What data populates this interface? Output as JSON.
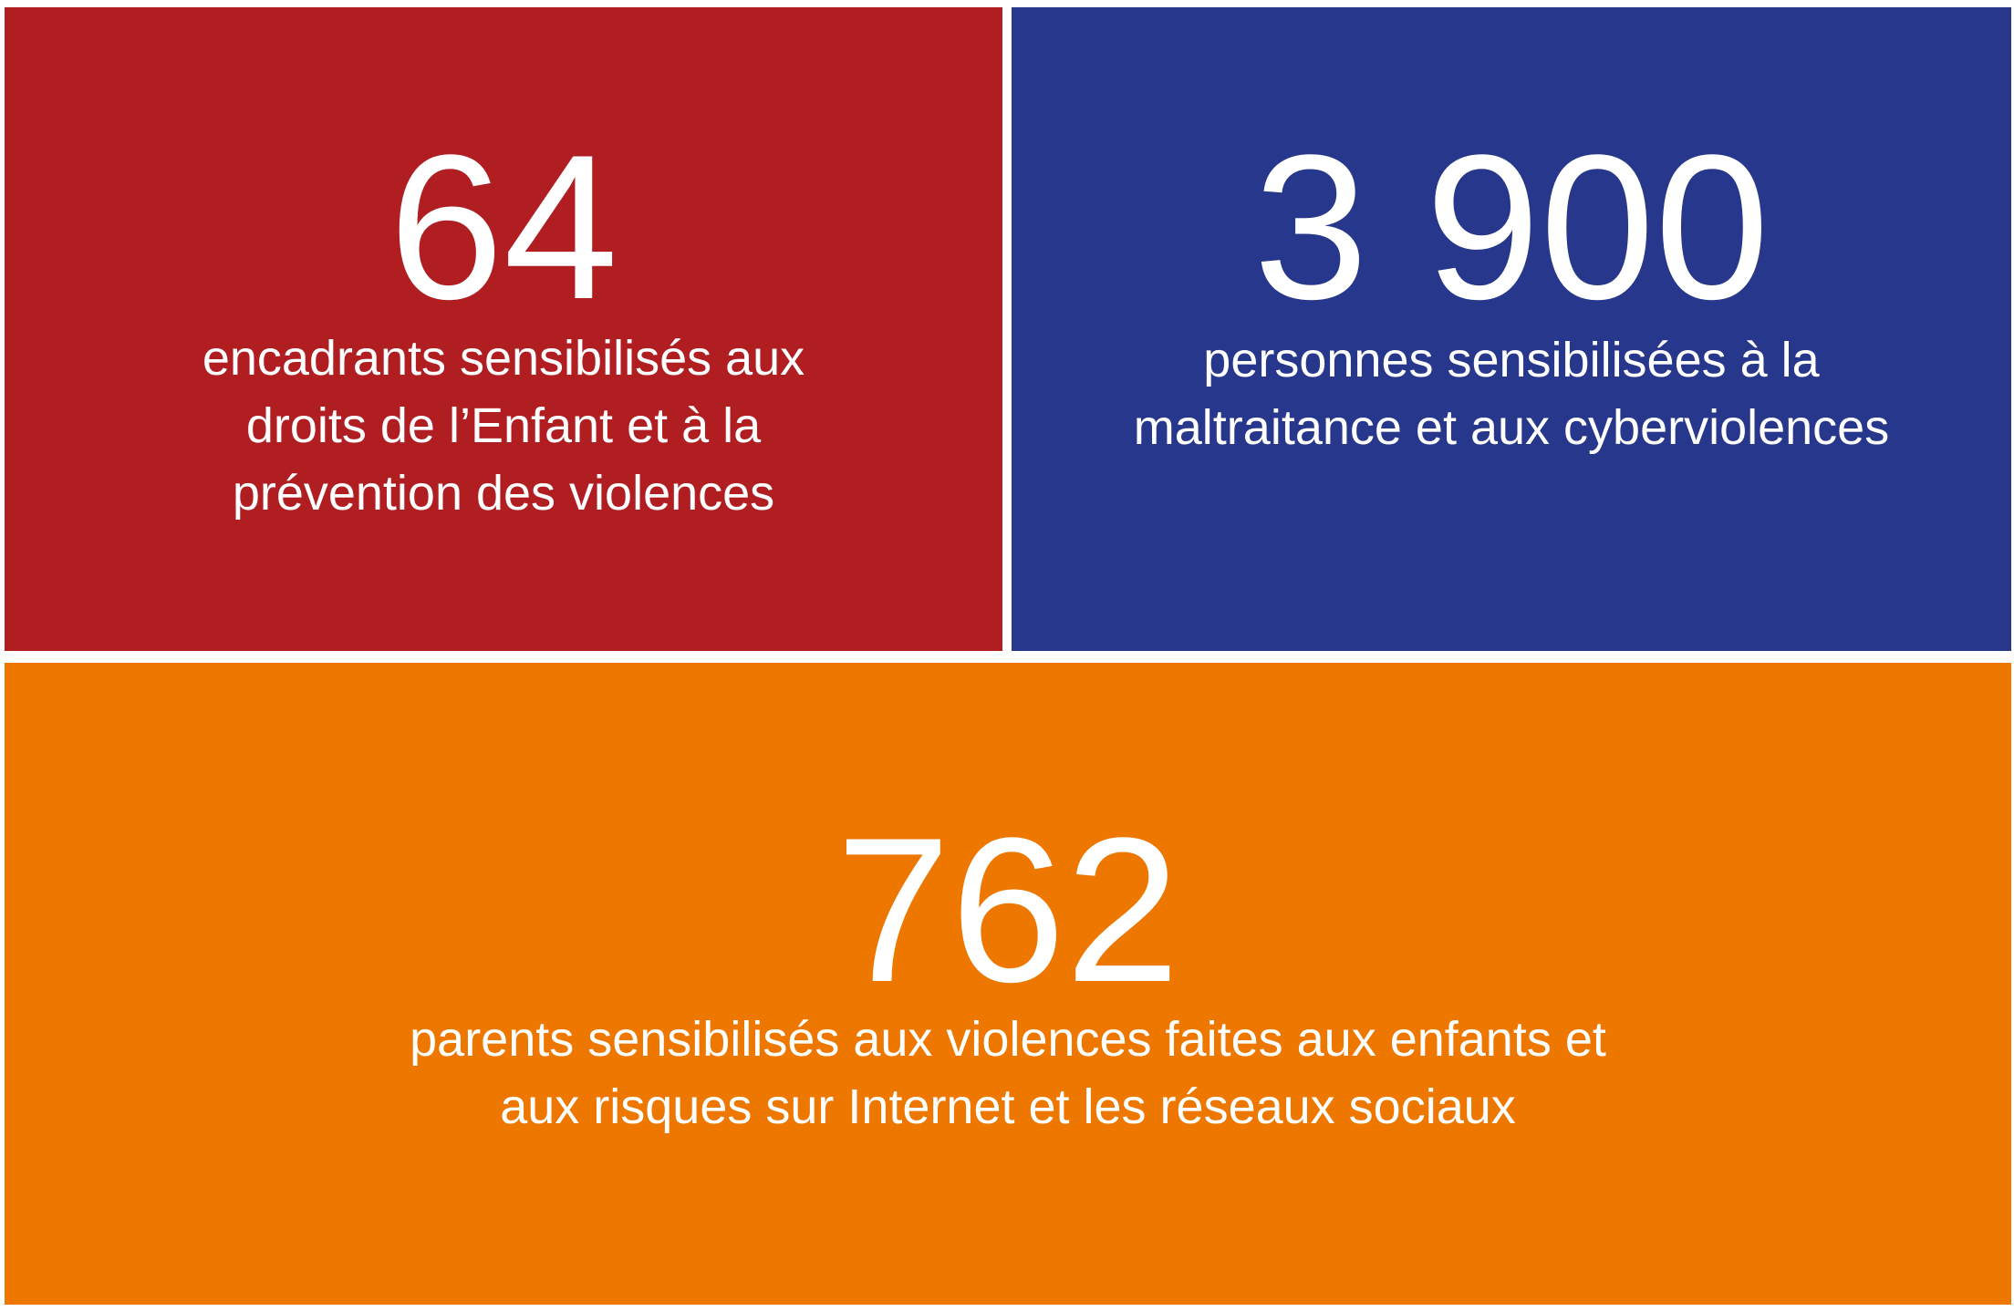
{
  "colors": {
    "red": "#B01E22",
    "blue": "#27378B",
    "orange": "#EE7700",
    "text": "#FFFFFF"
  },
  "tiles": [
    {
      "number": "64",
      "caption_lines": [
        "encadrants sensibilisés aux",
        "droits de l’Enfant et à la",
        "prévention des violences"
      ]
    },
    {
      "number": "3 900",
      "caption_lines": [
        "personnes sensibilisées à la",
        "maltraitance et aux cyberviolences"
      ]
    },
    {
      "number": "762",
      "caption_lines": [
        "parents sensibilisés aux violences faites aux enfants et",
        "aux risques sur Internet et les réseaux sociaux"
      ]
    }
  ]
}
